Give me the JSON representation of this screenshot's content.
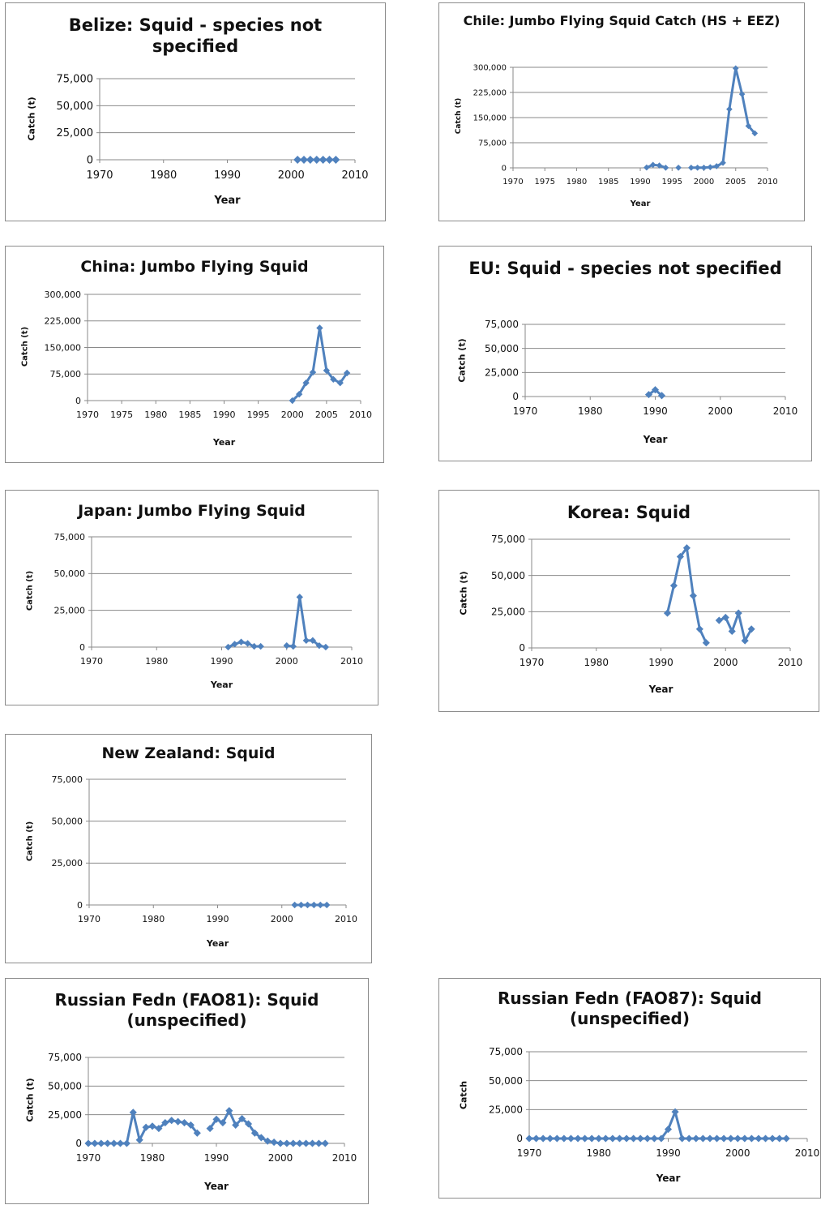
{
  "chart_data": [
    {
      "type": "line",
      "title": "Belize: Squid - species not specified",
      "xlabel": "Year",
      "ylabel": "Catch (t)",
      "xlim": [
        1970,
        2010
      ],
      "ylim": [
        0,
        75000
      ],
      "xticks": [
        "1970",
        "1980",
        "1990",
        "2000",
        "2010"
      ],
      "yticks": [
        "0",
        "25,000",
        "50,000",
        "75,000"
      ],
      "series": [
        {
          "color": "#4f81bd",
          "x": [
            2001,
            2002,
            2003,
            2004,
            2005,
            2006,
            2007
          ],
          "y": [
            0,
            0,
            0,
            0,
            0,
            0,
            0
          ]
        }
      ]
    },
    {
      "type": "line",
      "title": "Chile: Jumbo Flying Squid Catch (HS + EEZ)",
      "xlabel": "Year",
      "ylabel": "Catch (t)",
      "xlim": [
        1970,
        2010
      ],
      "ylim": [
        0,
        300000
      ],
      "xticks": [
        "1970",
        "1975",
        "1980",
        "1985",
        "1990",
        "1995",
        "2000",
        "2005",
        "2010"
      ],
      "yticks": [
        "0",
        "75,000",
        "150,000",
        "225,000",
        "300,000"
      ],
      "series": [
        {
          "color": "#4f81bd",
          "x": [
            1991,
            1992,
            1993,
            1994,
            1996,
            1998,
            1999,
            2000,
            2001,
            2002,
            2003,
            2004,
            2005,
            2006,
            2007,
            2008
          ],
          "y": [
            1000,
            9000,
            7000,
            500,
            500,
            500,
            500,
            500,
            2000,
            5000,
            15000,
            175000,
            297000,
            220000,
            125000,
            103000
          ]
        }
      ]
    },
    {
      "type": "line",
      "title": "China: Jumbo Flying Squid",
      "xlabel": "Year",
      "ylabel": "Catch (t)",
      "xlim": [
        1970,
        2010
      ],
      "ylim": [
        0,
        300000
      ],
      "xticks": [
        "1970",
        "1975",
        "1980",
        "1985",
        "1990",
        "1995",
        "2000",
        "2005",
        "2010"
      ],
      "yticks": [
        "0",
        "75,000",
        "150,000",
        "225,000",
        "300,000"
      ],
      "series": [
        {
          "color": "#4f81bd",
          "x": [
            2000,
            2001,
            2002,
            2003,
            2004,
            2005,
            2006,
            2007,
            2008
          ],
          "y": [
            0,
            18000,
            50000,
            80000,
            205000,
            85000,
            60000,
            50000,
            78000
          ]
        }
      ]
    },
    {
      "type": "line",
      "title": "EU: Squid - species not specified",
      "xlabel": "Year",
      "ylabel": "Catch (t)",
      "xlim": [
        1970,
        2010
      ],
      "ylim": [
        0,
        75000
      ],
      "xticks": [
        "1970",
        "1980",
        "1990",
        "2000",
        "2010"
      ],
      "yticks": [
        "0",
        "25,000",
        "50,000",
        "75,000"
      ],
      "series": [
        {
          "color": "#4f81bd",
          "x": [
            1989,
            1990,
            1991
          ],
          "y": [
            2000,
            7000,
            1000
          ]
        }
      ]
    },
    {
      "type": "line",
      "title": "Japan: Jumbo Flying Squid",
      "xlabel": "Year",
      "ylabel": "Catch (t)",
      "xlim": [
        1970,
        2010
      ],
      "ylim": [
        0,
        75000
      ],
      "xticks": [
        "1970",
        "1980",
        "1990",
        "2000",
        "2010"
      ],
      "yticks": [
        "0",
        "25,000",
        "50,000",
        "75,000"
      ],
      "series": [
        {
          "color": "#4f81bd",
          "x": [
            1991,
            1992,
            1993,
            1994,
            1995,
            1996,
            2000,
            2001,
            2002,
            2003,
            2004,
            2005,
            2006
          ],
          "y": [
            0,
            2000,
            3500,
            2500,
            500,
            500,
            1000,
            500,
            34000,
            4500,
            4500,
            1000,
            0
          ]
        }
      ]
    },
    {
      "type": "line",
      "title": "Korea: Squid",
      "xlabel": "Year",
      "ylabel": "Catch (t)",
      "xlim": [
        1970,
        2010
      ],
      "ylim": [
        0,
        75000
      ],
      "xticks": [
        "1970",
        "1980",
        "1990",
        "2000",
        "2010"
      ],
      "yticks": [
        "0",
        "25,000",
        "50,000",
        "75,000"
      ],
      "series": [
        {
          "color": "#4f81bd",
          "x": [
            1991,
            1992,
            1993,
            1994,
            1995,
            1996,
            1997,
            1999,
            2000,
            2001,
            2002,
            2003,
            2004
          ],
          "y": [
            24000,
            43000,
            63000,
            69000,
            36000,
            13000,
            3500,
            19000,
            21000,
            11500,
            24000,
            5000,
            13000
          ]
        }
      ]
    },
    {
      "type": "line",
      "title": "New Zealand: Squid",
      "xlabel": "Year",
      "ylabel": "Catch (t)",
      "xlim": [
        1970,
        2010
      ],
      "ylim": [
        0,
        75000
      ],
      "xticks": [
        "1970",
        "1980",
        "1990",
        "2000",
        "2010"
      ],
      "yticks": [
        "0",
        "25,000",
        "50,000",
        "75,000"
      ],
      "series": [
        {
          "color": "#4f81bd",
          "x": [
            2002,
            2003,
            2004,
            2005,
            2006,
            2007
          ],
          "y": [
            0,
            0,
            0,
            0,
            0,
            0
          ]
        }
      ]
    },
    {
      "type": "line",
      "title": "Russian Fedn (FAO81): Squid (unspecified)",
      "xlabel": "Year",
      "ylabel": "Catch (t)",
      "xlim": [
        1970,
        2010
      ],
      "ylim": [
        0,
        75000
      ],
      "xticks": [
        "1970",
        "1980",
        "1990",
        "2000",
        "2010"
      ],
      "yticks": [
        "0",
        "25,000",
        "50,000",
        "75,000"
      ],
      "series": [
        {
          "color": "#4f81bd",
          "x": [
            1970,
            1971,
            1972,
            1973,
            1974,
            1975,
            1976,
            1977,
            1978,
            1979,
            1980,
            1981,
            1982,
            1983,
            1984,
            1985,
            1986,
            1987,
            1989,
            1990,
            1991,
            1992,
            1993,
            1994,
            1995,
            1996,
            1997,
            1998,
            1999,
            2000,
            2001,
            2002,
            2003,
            2004,
            2005,
            2006,
            2007
          ],
          "y": [
            0,
            0,
            0,
            0,
            0,
            0,
            0,
            27000,
            3000,
            14000,
            15000,
            13000,
            18000,
            20000,
            19000,
            18000,
            16000,
            9000,
            13000,
            21000,
            18000,
            28500,
            16000,
            21500,
            17000,
            9000,
            5000,
            2000,
            1000,
            0,
            0,
            0,
            0,
            0,
            0,
            0,
            0
          ]
        }
      ]
    },
    {
      "type": "line",
      "title": "Russian Fedn (FAO87): Squid (unspecified)",
      "xlabel": "Year",
      "ylabel": "Catch",
      "xlim": [
        1970,
        2010
      ],
      "ylim": [
        0,
        75000
      ],
      "xticks": [
        "1970",
        "1980",
        "1990",
        "2000",
        "2010"
      ],
      "yticks": [
        "0",
        "25,000",
        "50,000",
        "75,000"
      ],
      "series": [
        {
          "color": "#4f81bd",
          "x": [
            1970,
            1971,
            1972,
            1973,
            1974,
            1975,
            1976,
            1977,
            1978,
            1979,
            1980,
            1981,
            1982,
            1983,
            1984,
            1985,
            1986,
            1987,
            1988,
            1989,
            1990,
            1991,
            1992,
            1993,
            1994,
            1995,
            1996,
            1997,
            1998,
            1999,
            2000,
            2001,
            2002,
            2003,
            2004,
            2005,
            2006,
            2007
          ],
          "y": [
            0,
            0,
            0,
            0,
            0,
            0,
            0,
            0,
            0,
            0,
            0,
            0,
            0,
            0,
            0,
            0,
            0,
            0,
            0,
            0,
            8000,
            23000,
            0,
            0,
            0,
            0,
            0,
            0,
            0,
            0,
            0,
            0,
            0,
            0,
            0,
            0,
            0,
            0
          ]
        }
      ]
    }
  ]
}
